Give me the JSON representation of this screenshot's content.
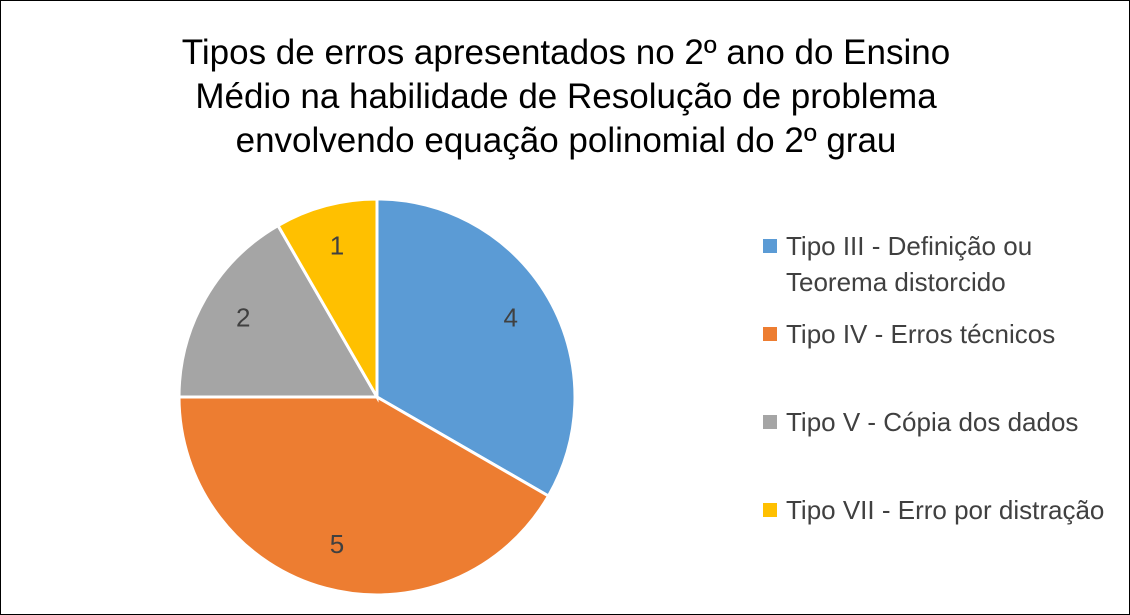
{
  "chart_data": {
    "type": "pie",
    "title": "Tipos de erros apresentados no 2º ano do Ensino Médio na habilidade de  Resolução de problema envolvendo equação polinomial do 2º grau",
    "categories": [
      "Tipo III - Definição ou Teorema distorcido",
      "Tipo IV - Erros técnicos",
      "Tipo V - Cópia dos dados",
      "Tipo VII - Erro por distração"
    ],
    "values": [
      4,
      5,
      2,
      1
    ],
    "colors": [
      "#5b9bd5",
      "#ed7d31",
      "#a5a5a5",
      "#ffc000"
    ],
    "legend": "right"
  }
}
